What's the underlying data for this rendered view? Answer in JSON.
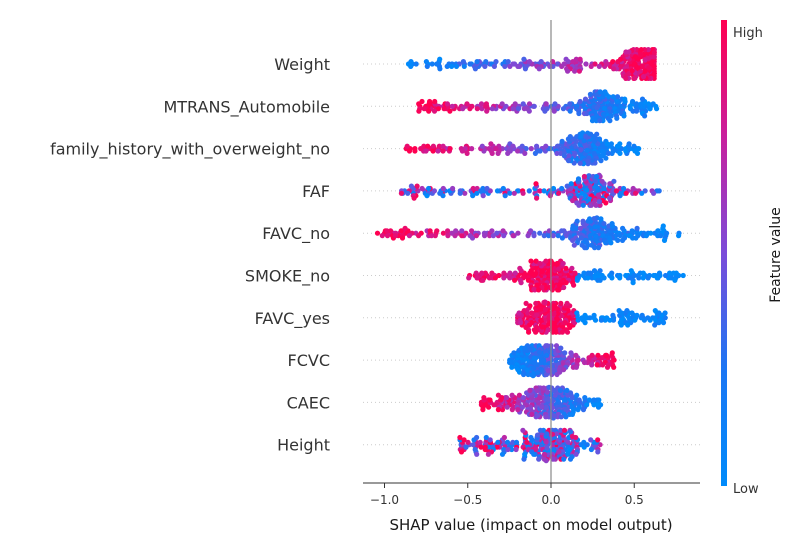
{
  "chart_data": {
    "type": "scatter",
    "subtype": "shap-beeswarm",
    "title": "",
    "xlabel": "SHAP value (impact on model output)",
    "xlim": [
      -1.15,
      0.9
    ],
    "xticks": [
      -1.0,
      -0.5,
      0.0,
      0.5
    ],
    "xtick_labels": [
      "−1.0",
      "−0.5",
      "0.0",
      "0.5"
    ],
    "colorbar": {
      "title": "Feature value",
      "high_label": "High",
      "low_label": "Low",
      "low_color": "#008bfb",
      "high_color": "#ff0051"
    },
    "features": [
      {
        "name": "Weight",
        "min": -0.87,
        "max": 0.62,
        "center": 0.0,
        "low_side": "left",
        "high_side": "right",
        "dense_at": 0.52
      },
      {
        "name": "MTRANS_Automobile",
        "min": -0.8,
        "max": 0.65,
        "center": 0.0,
        "low_side": "right",
        "high_side": "left",
        "dense_at": 0.3
      },
      {
        "name": "family_history_with_overweight_no",
        "min": -0.87,
        "max": 0.53,
        "center": 0.0,
        "low_side": "right",
        "high_side": "left",
        "dense_at": 0.2
      },
      {
        "name": "FAF",
        "min": -0.9,
        "max": 0.65,
        "center": 0.0,
        "low_side": "mixed",
        "high_side": "left",
        "dense_at": 0.25
      },
      {
        "name": "FAVC_no",
        "min": -1.05,
        "max": 0.77,
        "center": 0.0,
        "low_side": "right",
        "high_side": "left",
        "dense_at": 0.25
      },
      {
        "name": "SMOKE_no",
        "min": -0.5,
        "max": 0.8,
        "center": 0.0,
        "low_side": "right",
        "high_side": "center",
        "dense_at": 0.0
      },
      {
        "name": "FAVC_yes",
        "min": -0.2,
        "max": 0.7,
        "center": 0.0,
        "low_side": "right",
        "high_side": "center",
        "dense_at": -0.03
      },
      {
        "name": "FCVC",
        "min": -0.25,
        "max": 0.38,
        "center": 0.0,
        "low_side": "left",
        "high_side": "right",
        "dense_at": -0.05
      },
      {
        "name": "CAEC",
        "min": -0.42,
        "max": 0.3,
        "center": 0.0,
        "low_side": "right",
        "high_side": "left",
        "dense_at": -0.03
      },
      {
        "name": "Height",
        "min": -0.55,
        "max": 0.3,
        "center": 0.0,
        "low_side": "mixed",
        "high_side": "mixed",
        "dense_at": 0.0
      }
    ]
  }
}
